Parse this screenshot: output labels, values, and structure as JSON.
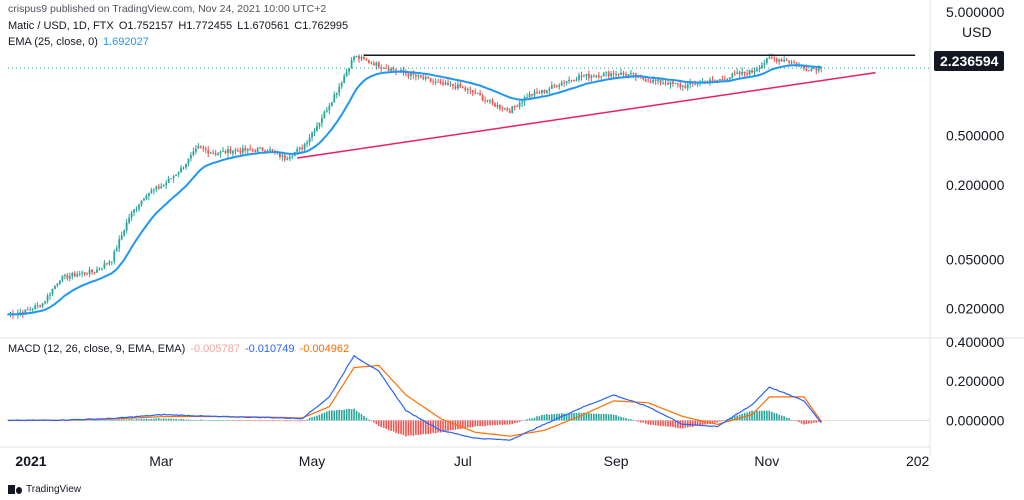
{
  "publisher_line": "crispus9 published on TradingView.com, Nov 24, 2021 10:00 UTC+2",
  "symbol_line": {
    "symbol": "Matic / USD, 1D, FTX",
    "open": "O1.752157",
    "high": "H1.772455",
    "low": "L1.670561",
    "close": "C1.762995"
  },
  "ema_line": {
    "label": "EMA (25, close, 0)",
    "value": "1.692027"
  },
  "macd_line": {
    "label": "MACD (12, 26, close, 9, EMA, EMA)",
    "hist": "-0.005787",
    "macd": "-0.010749",
    "signal": "-0.004962"
  },
  "currency": "USD",
  "last_price_tag": "2.236594",
  "footer_brand": "TradingView",
  "colors": {
    "up": "#26a69a",
    "down": "#ef5350",
    "ema": "#2196f3",
    "macd": "#2962ff",
    "signal": "#ff6d00",
    "trendline": "#e91e63",
    "resistance": "#131722",
    "hist_up": "#26a69a",
    "hist_down": "#ef5350"
  },
  "chart_data": [
    {
      "type": "candlestick",
      "title": "Matic / USD, 1D, FTX",
      "y_scale": "log",
      "ylim": [
        0.012,
        5.2
      ],
      "y_ticks": [
        "5.000000",
        "0.500000",
        "0.200000",
        "0.050000",
        "0.020000"
      ],
      "y_tick_values": [
        5.0,
        0.5,
        0.2,
        0.05,
        0.02
      ],
      "x_ticks": [
        "2021",
        "Mar",
        "May",
        "Jul",
        "Sep",
        "Nov",
        "202"
      ],
      "x_tick_dates": [
        "2021-01-01",
        "2021-03-01",
        "2021-05-01",
        "2021-07-01",
        "2021-09-01",
        "2021-11-01",
        "2022-01-01"
      ],
      "xlim": [
        "2020-12-29",
        "2022-01-06"
      ],
      "close_series": {
        "name": "Close",
        "dates": [
          "2020-12-29",
          "2021-01-05",
          "2021-01-12",
          "2021-01-19",
          "2021-01-26",
          "2021-02-02",
          "2021-02-09",
          "2021-02-16",
          "2021-02-23",
          "2021-03-02",
          "2021-03-09",
          "2021-03-16",
          "2021-03-23",
          "2021-03-30",
          "2021-04-06",
          "2021-04-13",
          "2021-04-20",
          "2021-04-27",
          "2021-05-04",
          "2021-05-11",
          "2021-05-18",
          "2021-05-25",
          "2021-06-01",
          "2021-06-08",
          "2021-06-15",
          "2021-06-22",
          "2021-06-29",
          "2021-07-06",
          "2021-07-13",
          "2021-07-20",
          "2021-07-27",
          "2021-08-03",
          "2021-08-10",
          "2021-08-17",
          "2021-08-24",
          "2021-08-31",
          "2021-09-07",
          "2021-09-14",
          "2021-09-21",
          "2021-09-28",
          "2021-10-05",
          "2021-10-12",
          "2021-10-19",
          "2021-10-26",
          "2021-11-02",
          "2021-11-09",
          "2021-11-16",
          "2021-11-23"
        ],
        "values": [
          0.018,
          0.019,
          0.022,
          0.035,
          0.038,
          0.04,
          0.05,
          0.11,
          0.17,
          0.2,
          0.27,
          0.4,
          0.36,
          0.38,
          0.38,
          0.39,
          0.33,
          0.4,
          0.65,
          1.15,
          2.2,
          1.95,
          1.75,
          1.6,
          1.45,
          1.3,
          1.25,
          1.1,
          0.9,
          0.8,
          1.05,
          1.15,
          1.35,
          1.5,
          1.55,
          1.6,
          1.55,
          1.4,
          1.35,
          1.25,
          1.35,
          1.4,
          1.55,
          1.65,
          2.1,
          2.05,
          1.75,
          1.762995
        ]
      },
      "ema": {
        "name": "EMA (25, close, 0)",
        "last": 1.692027
      },
      "annotations": [
        {
          "kind": "resistance",
          "value": 2.236594,
          "start": "2021-05-22",
          "end": "2021-12-31"
        },
        {
          "kind": "ascending-trendline",
          "start": [
            "2021-04-25",
            0.33
          ],
          "end": [
            "2021-12-15",
            1.62
          ]
        }
      ]
    },
    {
      "type": "macd",
      "title": "MACD (12, 26, close, 9, EMA, EMA)",
      "ylim": [
        -0.13,
        0.42
      ],
      "y_ticks": [
        "0.400000",
        "0.200000",
        "0.000000"
      ],
      "y_tick_values": [
        0.4,
        0.2,
        0.0
      ],
      "macd": {
        "name": "MACD",
        "dates": [
          "2020-12-29",
          "2021-01-19",
          "2021-02-09",
          "2021-03-02",
          "2021-03-23",
          "2021-04-13",
          "2021-04-27",
          "2021-05-08",
          "2021-05-18",
          "2021-05-28",
          "2021-06-08",
          "2021-06-22",
          "2021-07-06",
          "2021-07-20",
          "2021-08-03",
          "2021-08-17",
          "2021-08-31",
          "2021-09-14",
          "2021-09-28",
          "2021-10-12",
          "2021-10-26",
          "2021-11-02",
          "2021-11-16",
          "2021-11-23"
        ],
        "values": [
          0.0,
          0.002,
          0.01,
          0.03,
          0.02,
          0.015,
          0.01,
          0.12,
          0.33,
          0.25,
          0.05,
          -0.05,
          -0.09,
          -0.1,
          -0.02,
          0.06,
          0.13,
          0.07,
          -0.02,
          -0.03,
          0.08,
          0.17,
          0.1,
          -0.010749
        ]
      },
      "signal": {
        "name": "Signal",
        "values": [
          0.0,
          0.001,
          0.007,
          0.02,
          0.02,
          0.017,
          0.013,
          0.07,
          0.27,
          0.28,
          0.13,
          0.01,
          -0.06,
          -0.08,
          -0.05,
          0.02,
          0.1,
          0.09,
          0.02,
          -0.02,
          0.03,
          0.12,
          0.12,
          -0.004962
        ]
      },
      "hist_last": -0.005787
    }
  ]
}
